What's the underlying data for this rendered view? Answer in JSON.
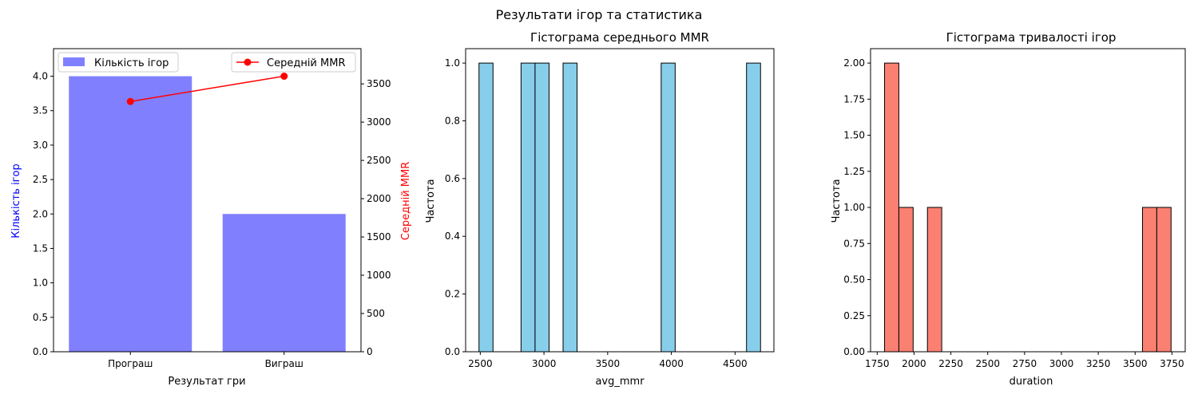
{
  "suptitle": "Результати ігор та статистика",
  "chart_data": [
    {
      "type": "bar",
      "title": "",
      "xlabel": "Результат гри",
      "ylabel": "Кількість ігор",
      "y2label": "Середній MMR",
      "categories": [
        "Програш",
        "Виграш"
      ],
      "series": [
        {
          "name": "Кількість ігор",
          "kind": "bar",
          "axis": "left",
          "color": "#8080ff",
          "values": [
            4,
            2
          ]
        },
        {
          "name": "Середній MMR",
          "kind": "line",
          "axis": "right",
          "color": "#ff0000",
          "values": [
            3270,
            3600
          ]
        }
      ],
      "ylim": [
        0,
        4.4
      ],
      "y2lim": [
        0,
        3960
      ],
      "yticks": [
        0.0,
        0.5,
        1.0,
        1.5,
        2.0,
        2.5,
        3.0,
        3.5,
        4.0
      ],
      "y2ticks": [
        0,
        500,
        1000,
        1500,
        2000,
        2500,
        3000,
        3500
      ],
      "legend": "top-left / top-right",
      "ylabel_color": "#0000ff",
      "y2label_color": "#ff0000"
    },
    {
      "type": "bar",
      "title": "Гістограма середнього MMR",
      "xlabel": "avg_mmr",
      "ylabel": "Частота",
      "color": "#87ceeb",
      "bins": [
        {
          "x0": 2490,
          "x1": 2600,
          "value": 1
        },
        {
          "x0": 2820,
          "x1": 2930,
          "value": 1
        },
        {
          "x0": 2930,
          "x1": 3040,
          "value": 1
        },
        {
          "x0": 3150,
          "x1": 3260,
          "value": 1
        },
        {
          "x0": 3920,
          "x1": 4030,
          "value": 1
        },
        {
          "x0": 4590,
          "x1": 4700,
          "value": 1
        }
      ],
      "xlim": [
        2385,
        4805
      ],
      "ylim": [
        0,
        1.05
      ],
      "xticks": [
        2500,
        3000,
        3500,
        4000,
        4500
      ],
      "yticks": [
        0.0,
        0.2,
        0.4,
        0.6,
        0.8,
        1.0
      ]
    },
    {
      "type": "bar",
      "title": "Гістограма тривалості ігор",
      "xlabel": "duration",
      "ylabel": "Частота",
      "color": "#fa8072",
      "bins": [
        {
          "x0": 1800,
          "x1": 1897,
          "value": 2
        },
        {
          "x0": 1897,
          "x1": 1994,
          "value": 1
        },
        {
          "x0": 2091,
          "x1": 2188,
          "value": 1
        },
        {
          "x0": 3550,
          "x1": 3647,
          "value": 1
        },
        {
          "x0": 3647,
          "x1": 3744,
          "value": 1
        }
      ],
      "xlim": [
        1705,
        3840
      ],
      "ylim": [
        0,
        2.1
      ],
      "xticks": [
        1750,
        2000,
        2250,
        2500,
        2750,
        3000,
        3250,
        3500,
        3750
      ],
      "yticks": [
        0.0,
        0.25,
        0.5,
        0.75,
        1.0,
        1.25,
        1.5,
        1.75,
        2.0
      ]
    }
  ]
}
